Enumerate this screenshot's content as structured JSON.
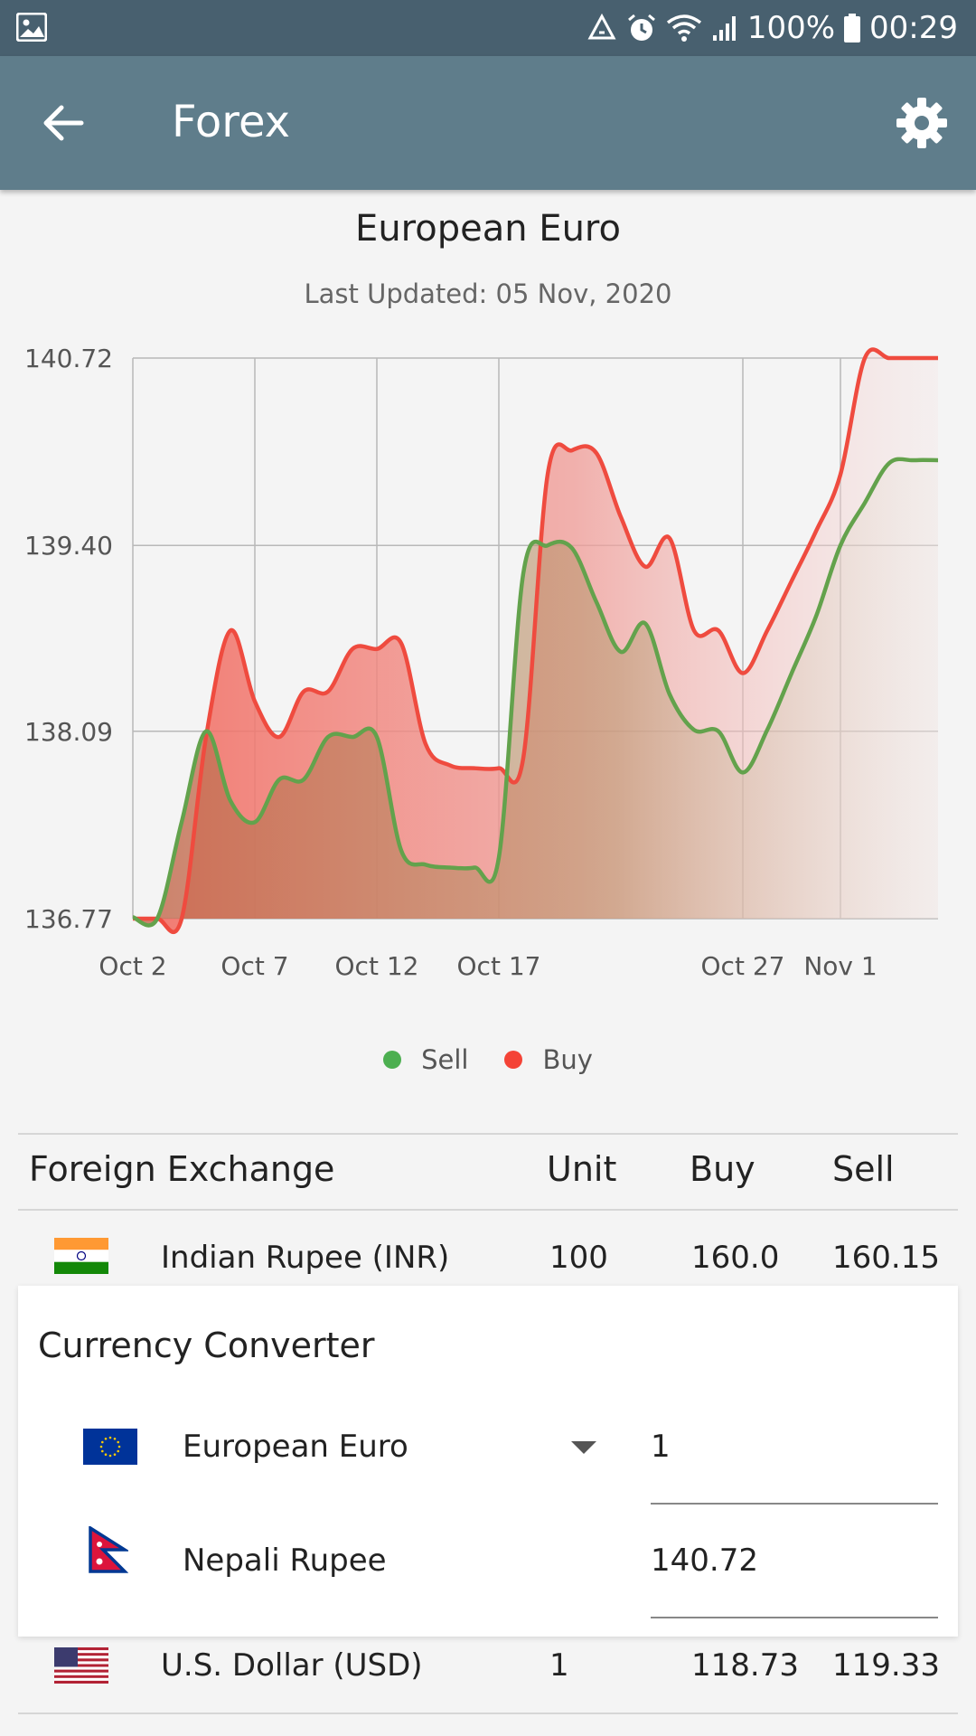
{
  "status_bar": {
    "battery": "100%",
    "time": "00:29",
    "icons": [
      "image-icon",
      "recycle-icon",
      "alarm-icon",
      "wifi-icon",
      "signal-icon",
      "battery-icon"
    ]
  },
  "app_bar": {
    "title": "Forex",
    "back_icon": "arrow-left-icon",
    "settings_icon": "gear-icon"
  },
  "chart": {
    "heading": "European Euro",
    "subtitle": "Last Updated: 05 Nov, 2020"
  },
  "chart_data": {
    "type": "area",
    "x": [
      "Oct 2",
      "Oct 3",
      "Oct 4",
      "Oct 5",
      "Oct 6",
      "Oct 7",
      "Oct 8",
      "Oct 9",
      "Oct 10",
      "Oct 11",
      "Oct 12",
      "Oct 13",
      "Oct 14",
      "Oct 15",
      "Oct 16",
      "Oct 17",
      "Oct 18",
      "Oct 19",
      "Oct 20",
      "Oct 21",
      "Oct 22",
      "Oct 23",
      "Oct 24",
      "Oct 25",
      "Oct 26",
      "Oct 27",
      "Oct 28",
      "Oct 29",
      "Oct 30",
      "Nov 1",
      "Nov 2",
      "Nov 3",
      "Nov 4",
      "Nov 5"
    ],
    "x_tick_labels": [
      "Oct 2",
      "Oct 7",
      "Oct 12",
      "Oct 17",
      "Oct 27",
      "Nov 1"
    ],
    "y_ticks": [
      136.77,
      138.09,
      139.4,
      140.72
    ],
    "ylim": [
      136.77,
      140.72
    ],
    "series": [
      {
        "name": "Sell",
        "color": "#4caf50",
        "values": [
          136.78,
          136.77,
          137.45,
          138.09,
          137.6,
          137.45,
          137.75,
          137.75,
          138.05,
          138.05,
          138.05,
          137.25,
          137.15,
          137.13,
          137.13,
          137.2,
          139.2,
          139.4,
          139.38,
          139.0,
          138.65,
          138.85,
          138.35,
          138.1,
          138.09,
          137.8,
          138.1,
          138.5,
          138.9,
          139.4,
          139.7,
          139.98,
          140.0,
          140.0
        ]
      },
      {
        "name": "Buy",
        "color": "#f44336",
        "values": [
          136.48,
          136.47,
          136.48,
          138.05,
          138.8,
          138.3,
          138.05,
          138.37,
          138.37,
          138.67,
          138.67,
          138.71,
          138.0,
          137.85,
          137.83,
          137.83,
          137.9,
          139.9,
          140.07,
          140.05,
          139.6,
          139.25,
          139.45,
          138.8,
          138.8,
          138.5,
          138.8,
          139.15,
          139.5,
          139.9,
          140.72,
          140.72,
          140.72,
          140.72
        ]
      }
    ],
    "legend": [
      "Sell",
      "Buy"
    ],
    "legend_position": "bottom-center",
    "grid": true
  },
  "table": {
    "headers": {
      "name": "Foreign Exchange",
      "unit": "Unit",
      "buy": "Buy",
      "sell": "Sell"
    },
    "rows": [
      {
        "name": "Indian Rupee (INR)",
        "unit": "100",
        "buy": "160.0",
        "sell": "160.15",
        "flag": "india-flag-icon"
      },
      {
        "name": "U.S. Dollar (USD)",
        "unit": "1",
        "buy": "118.73",
        "sell": "119.33",
        "flag": "usa-flag-icon"
      }
    ]
  },
  "converter": {
    "title": "Currency Converter",
    "from": {
      "currency": "European Euro",
      "value": "1",
      "flag": "eu-flag-icon"
    },
    "to": {
      "currency": "Nepali Rupee",
      "value": "140.72",
      "flag": "nepal-flag-icon"
    }
  }
}
